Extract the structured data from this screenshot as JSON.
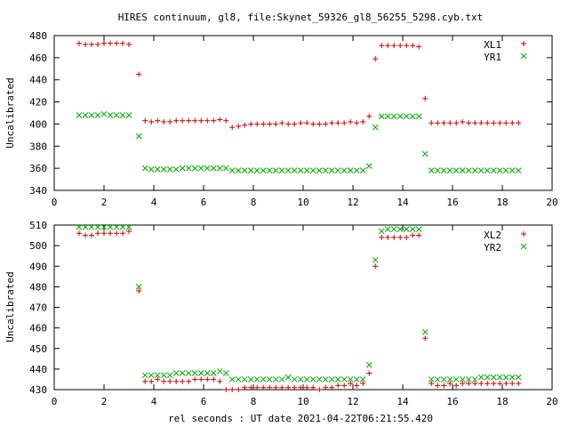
{
  "chart_data": {
    "type": "scatter",
    "title": "HIRES continuum, gl8, file:Skynet_59326_gl8_56255_5298.cyb.txt",
    "xlabel": "rel seconds : UT date 2021-04-22T06:21:55.420",
    "panels": [
      {
        "ylabel": "Uncalibrated",
        "xlim": [
          0,
          20
        ],
        "ylim": [
          340,
          480
        ],
        "xticks": [
          "0",
          "2",
          "4",
          "6",
          "8",
          "10",
          "12",
          "14",
          "16",
          "18",
          "20"
        ],
        "yticks": [
          "340",
          "360",
          "380",
          "400",
          "420",
          "440",
          "460",
          "480"
        ],
        "legend_position": "top-right",
        "series": [
          {
            "name": "XL1",
            "color": "#cc0000",
            "marker": "plus",
            "x": [
              1.0,
              1.25,
              1.5,
              1.75,
              2.0,
              2.25,
              2.5,
              2.75,
              3.0,
              3.4,
              3.65,
              3.9,
              4.15,
              4.4,
              4.65,
              4.9,
              5.15,
              5.4,
              5.65,
              5.9,
              6.15,
              6.4,
              6.65,
              6.9,
              7.15,
              7.4,
              7.65,
              7.9,
              8.15,
              8.4,
              8.65,
              8.9,
              9.15,
              9.4,
              9.65,
              9.9,
              10.15,
              10.4,
              10.65,
              10.9,
              11.15,
              11.4,
              11.65,
              11.9,
              12.15,
              12.4,
              12.65,
              12.9,
              13.15,
              13.4,
              13.65,
              13.9,
              14.15,
              14.4,
              14.65,
              14.9,
              15.15,
              15.4,
              15.65,
              15.9,
              16.15,
              16.4,
              16.65,
              16.9,
              17.15,
              17.4,
              17.65,
              17.9,
              18.15,
              18.4,
              18.65
            ],
            "y": [
              473,
              472,
              472,
              472,
              473,
              473,
              473,
              473,
              472,
              445,
              403,
              402,
              403,
              402,
              402,
              403,
              403,
              403,
              403,
              403,
              403,
              403,
              404,
              403,
              397,
              398,
              399,
              400,
              400,
              400,
              400,
              400,
              401,
              400,
              400,
              401,
              401,
              400,
              400,
              400,
              401,
              401,
              401,
              402,
              401,
              402,
              407,
              459,
              471,
              471,
              471,
              471,
              471,
              471,
              470,
              423,
              401,
              401,
              401,
              401,
              401,
              402,
              401,
              401,
              401,
              401,
              401,
              401,
              401,
              401,
              401
            ]
          },
          {
            "name": "YR1",
            "color": "#00aa00",
            "marker": "cross",
            "x": [
              1.0,
              1.25,
              1.5,
              1.75,
              2.0,
              2.25,
              2.5,
              2.75,
              3.0,
              3.4,
              3.65,
              3.9,
              4.15,
              4.4,
              4.65,
              4.9,
              5.15,
              5.4,
              5.65,
              5.9,
              6.15,
              6.4,
              6.65,
              6.9,
              7.15,
              7.4,
              7.65,
              7.9,
              8.15,
              8.4,
              8.65,
              8.9,
              9.15,
              9.4,
              9.65,
              9.9,
              10.15,
              10.4,
              10.65,
              10.9,
              11.15,
              11.4,
              11.65,
              11.9,
              12.15,
              12.4,
              12.65,
              12.9,
              13.15,
              13.4,
              13.65,
              13.9,
              14.15,
              14.4,
              14.65,
              14.9,
              15.15,
              15.4,
              15.65,
              15.9,
              16.15,
              16.4,
              16.65,
              16.9,
              17.15,
              17.4,
              17.65,
              17.9,
              18.15,
              18.4,
              18.65
            ],
            "y": [
              408,
              408,
              408,
              408,
              409,
              408,
              408,
              408,
              408,
              389,
              360,
              359,
              359,
              359,
              359,
              359,
              360,
              360,
              360,
              360,
              360,
              360,
              360,
              360,
              358,
              358,
              358,
              358,
              358,
              358,
              358,
              358,
              358,
              358,
              358,
              358,
              358,
              358,
              358,
              358,
              358,
              358,
              358,
              358,
              358,
              358,
              362,
              397,
              407,
              407,
              407,
              407,
              407,
              407,
              407,
              373,
              358,
              358,
              358,
              358,
              358,
              358,
              358,
              358,
              358,
              358,
              358,
              358,
              358,
              358,
              358
            ]
          }
        ]
      },
      {
        "ylabel": "Uncalibrated",
        "xlim": [
          0,
          20
        ],
        "ylim": [
          430,
          510
        ],
        "xticks": [
          "0",
          "2",
          "4",
          "6",
          "8",
          "10",
          "12",
          "14",
          "16",
          "18",
          "20"
        ],
        "yticks": [
          "430",
          "440",
          "450",
          "460",
          "470",
          "480",
          "490",
          "500",
          "510"
        ],
        "legend_position": "top-right",
        "series": [
          {
            "name": "XL2",
            "color": "#cc0000",
            "marker": "plus",
            "x": [
              1.0,
              1.25,
              1.5,
              1.75,
              2.0,
              2.25,
              2.5,
              2.75,
              3.0,
              3.4,
              3.65,
              3.9,
              4.15,
              4.4,
              4.65,
              4.9,
              5.15,
              5.4,
              5.65,
              5.9,
              6.15,
              6.4,
              6.65,
              6.9,
              7.15,
              7.4,
              7.65,
              7.9,
              8.15,
              8.4,
              8.65,
              8.9,
              9.15,
              9.4,
              9.65,
              9.9,
              10.15,
              10.4,
              10.65,
              10.9,
              11.15,
              11.4,
              11.65,
              11.9,
              12.15,
              12.4,
              12.65,
              12.9,
              13.15,
              13.4,
              13.65,
              13.9,
              14.15,
              14.4,
              14.65,
              14.9,
              15.15,
              15.4,
              15.65,
              15.9,
              16.15,
              16.4,
              16.65,
              16.9,
              17.15,
              17.4,
              17.65,
              17.9,
              18.15,
              18.4,
              18.65
            ],
            "y": [
              506,
              505,
              505,
              506,
              506,
              506,
              506,
              506,
              507,
              478,
              434,
              434,
              435,
              434,
              434,
              434,
              434,
              434,
              435,
              435,
              435,
              435,
              434,
              430,
              430,
              430,
              431,
              431,
              431,
              431,
              431,
              431,
              431,
              431,
              431,
              431,
              431,
              431,
              430,
              431,
              431,
              432,
              432,
              433,
              432,
              433,
              438,
              490,
              504,
              504,
              504,
              504,
              504,
              505,
              505,
              455,
              433,
              432,
              432,
              433,
              432,
              433,
              433,
              433,
              433,
              433,
              433,
              433,
              433,
              433,
              433
            ]
          },
          {
            "name": "YR2",
            "color": "#00aa00",
            "marker": "cross",
            "x": [
              1.0,
              1.25,
              1.5,
              1.75,
              2.0,
              2.25,
              2.5,
              2.75,
              3.0,
              3.4,
              3.65,
              3.9,
              4.15,
              4.4,
              4.65,
              4.9,
              5.15,
              5.4,
              5.65,
              5.9,
              6.15,
              6.4,
              6.65,
              6.9,
              7.15,
              7.4,
              7.65,
              7.9,
              8.15,
              8.4,
              8.65,
              8.9,
              9.15,
              9.4,
              9.65,
              9.9,
              10.15,
              10.4,
              10.65,
              10.9,
              11.15,
              11.4,
              11.65,
              11.9,
              12.15,
              12.4,
              12.65,
              12.9,
              13.15,
              13.4,
              13.65,
              13.9,
              14.15,
              14.4,
              14.65,
              14.9,
              15.15,
              15.4,
              15.65,
              15.9,
              16.15,
              16.4,
              16.65,
              16.9,
              17.15,
              17.4,
              17.65,
              17.9,
              18.15,
              18.4,
              18.65
            ],
            "y": [
              509,
              509,
              509,
              509,
              509,
              509,
              509,
              509,
              509,
              480,
              437,
              437,
              437,
              437,
              437,
              438,
              438,
              438,
              438,
              438,
              438,
              438,
              439,
              438,
              435,
              435,
              435,
              435,
              435,
              435,
              435,
              435,
              435,
              436,
              435,
              435,
              435,
              435,
              435,
              435,
              435,
              435,
              435,
              435,
              435,
              435,
              442,
              493,
              507,
              508,
              508,
              508,
              508,
              508,
              508,
              458,
              435,
              435,
              435,
              435,
              435,
              435,
              435,
              435,
              436,
              436,
              436,
              436,
              436,
              436,
              436
            ]
          }
        ]
      }
    ]
  }
}
